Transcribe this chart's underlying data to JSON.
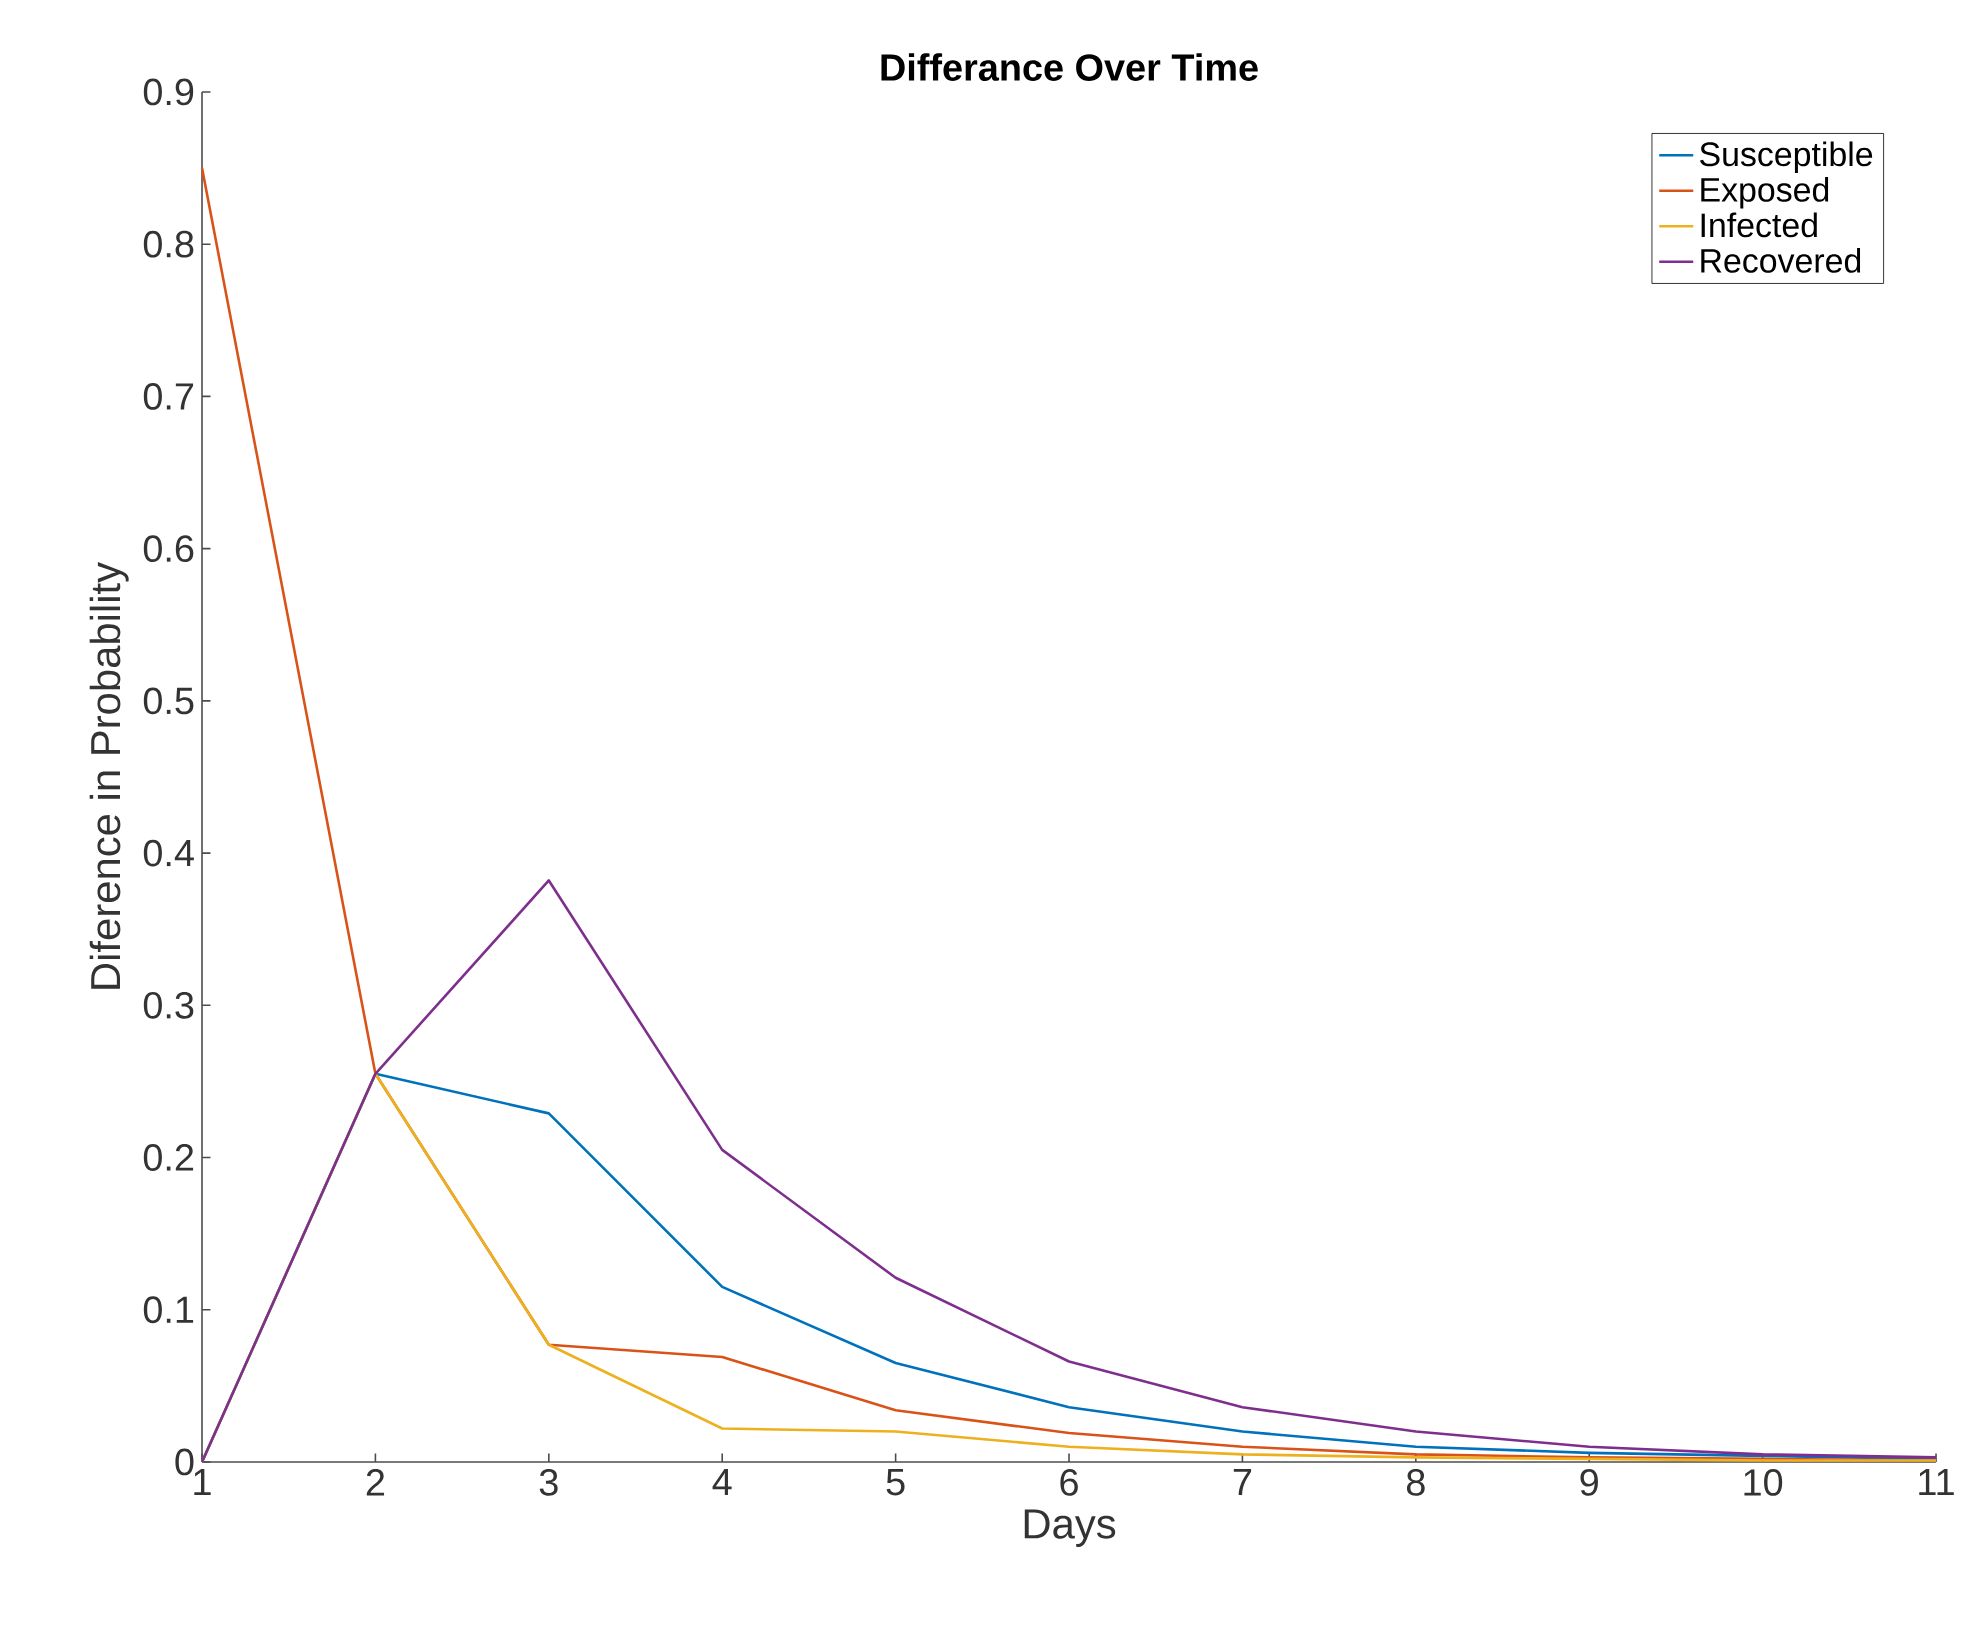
{
  "chart_data": {
    "type": "line",
    "title": "Differance Over Time",
    "xlabel": "Days",
    "ylabel": "Diference in Probability",
    "x": [
      1,
      2,
      3,
      4,
      5,
      6,
      7,
      8,
      9,
      10,
      11
    ],
    "series": [
      {
        "name": "Susceptible",
        "color": "#0072bd",
        "values": [
          0,
          0.255,
          0.229,
          0.115,
          0.065,
          0.036,
          0.02,
          0.01,
          0.006,
          0.004,
          0.002
        ]
      },
      {
        "name": "Exposed",
        "color": "#d95319",
        "values": [
          0.85,
          0.255,
          0.077,
          0.069,
          0.034,
          0.019,
          0.01,
          0.005,
          0.003,
          0.002,
          0.001
        ]
      },
      {
        "name": "Infected",
        "color": "#edb120",
        "values": [
          0,
          0.255,
          0.077,
          0.022,
          0.02,
          0.01,
          0.005,
          0.003,
          0.002,
          0.001,
          0.001
        ]
      },
      {
        "name": "Recovered",
        "color": "#7e2f8e",
        "values": [
          0,
          0.255,
          0.382,
          0.205,
          0.121,
          0.066,
          0.036,
          0.02,
          0.01,
          0.005,
          0.003
        ]
      }
    ],
    "xlim": [
      1,
      11
    ],
    "ylim": [
      0,
      0.9
    ],
    "xticks": [
      1,
      2,
      3,
      4,
      5,
      6,
      7,
      8,
      9,
      10,
      11
    ],
    "yticks": [
      0,
      0.1,
      0.2,
      0.3,
      0.4,
      0.5,
      0.6,
      0.7,
      0.8,
      0.9
    ],
    "legend": "top right",
    "grid": false
  }
}
